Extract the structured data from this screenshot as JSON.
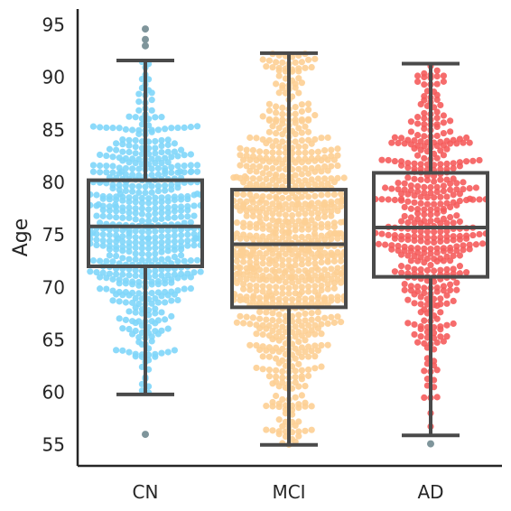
{
  "chart_data": {
    "type": "box",
    "ylabel": "Age",
    "xlabel": "",
    "ylim": [
      53,
      96.5
    ],
    "yticks": [
      55,
      60,
      65,
      70,
      75,
      80,
      85,
      90,
      95
    ],
    "categories": [
      "CN",
      "MCI",
      "AD"
    ],
    "colors": {
      "CN": "#7fd6fa",
      "MCI": "#fdcf93",
      "AD": "#f55c5c",
      "box": "#4a4a4a",
      "outlier": "#7f959b"
    },
    "boxes": [
      {
        "name": "CN",
        "whisker_low": 59.8,
        "q1": 72.0,
        "median": 75.8,
        "q3": 80.2,
        "whisker_high": 91.6,
        "outliers": [
          56.0,
          93.0,
          93.6,
          94.6
        ]
      },
      {
        "name": "MCI",
        "whisker_low": 55.0,
        "q1": 68.1,
        "median": 74.1,
        "q3": 79.3,
        "whisker_high": 92.3,
        "outliers": []
      },
      {
        "name": "AD",
        "whisker_low": 55.9,
        "q1": 71.0,
        "median": 75.7,
        "q3": 80.9,
        "whisker_high": 91.3,
        "outliers": [
          55.1
        ]
      }
    ],
    "swarm": {
      "CN": 560,
      "MCI": 850,
      "AD": 420
    },
    "grid": false
  }
}
